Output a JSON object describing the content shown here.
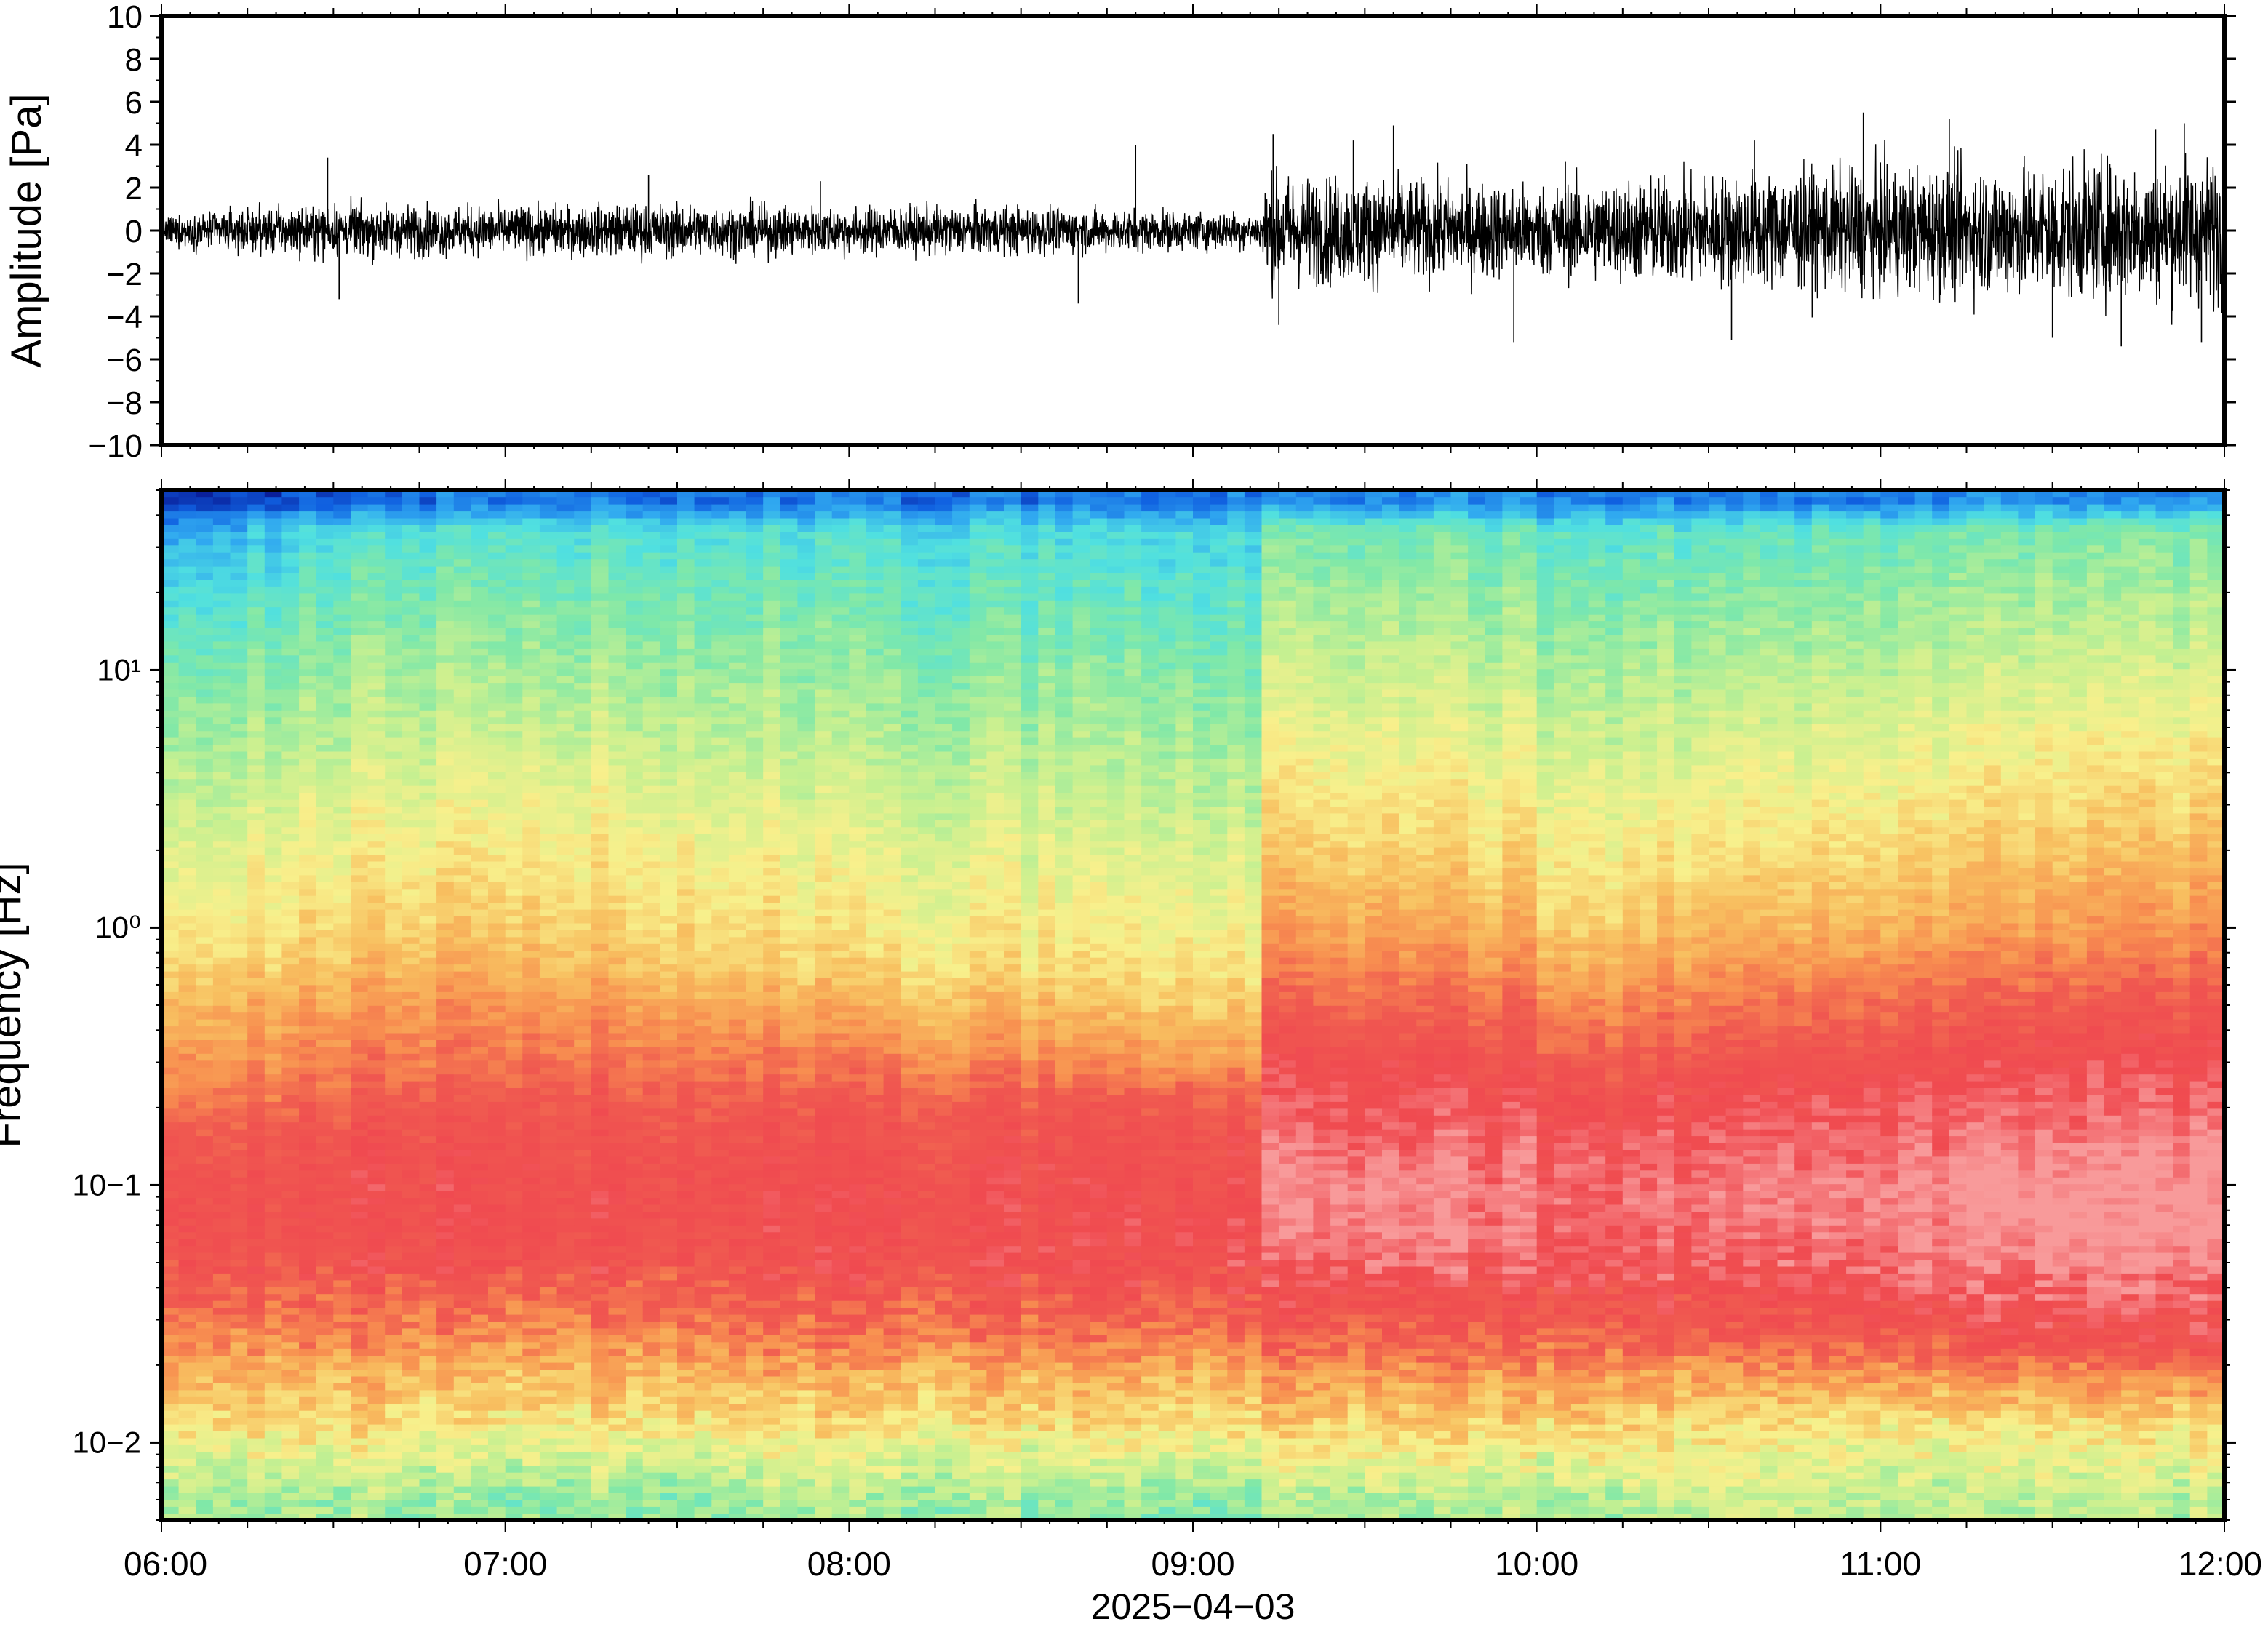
{
  "chart_data": [
    {
      "type": "line",
      "ylabel": "Amplitude [Pa]",
      "ylim": [
        -10,
        10
      ],
      "yticks": [
        10,
        8,
        6,
        4,
        2,
        0,
        -2,
        -4,
        -6,
        -8,
        -10
      ],
      "ytick_labels": [
        "10",
        "8",
        "6",
        "4",
        "2",
        "0",
        "−2",
        "−4",
        "−6",
        "−8",
        "−10"
      ],
      "xlim": [
        "06:00",
        "12:00"
      ],
      "grid": false,
      "line_color": "#000000",
      "envelope": {
        "time": [
          "06:00",
          "06:15",
          "06:30",
          "07:00",
          "07:30",
          "08:00",
          "08:30",
          "09:00",
          "09:12",
          "09:13",
          "09:30",
          "10:00",
          "10:30",
          "11:00",
          "11:30",
          "12:00"
        ],
        "typical_half_range_pa": [
          0.6,
          0.9,
          1.1,
          1.0,
          1.1,
          1.0,
          1.0,
          0.8,
          0.8,
          2.3,
          2.2,
          1.9,
          2.3,
          2.6,
          2.8,
          3.0
        ]
      },
      "spikes": [
        {
          "time": "06:29",
          "value": 3.4
        },
        {
          "time": "06:31",
          "value": -3.2
        },
        {
          "time": "07:25",
          "value": 2.6
        },
        {
          "time": "07:55",
          "value": 2.3
        },
        {
          "time": "08:40",
          "value": -3.4
        },
        {
          "time": "08:50",
          "value": 4.0
        },
        {
          "time": "09:14",
          "value": 4.5
        },
        {
          "time": "09:15",
          "value": -4.4
        },
        {
          "time": "09:28",
          "value": 4.2
        },
        {
          "time": "09:35",
          "value": 4.9
        },
        {
          "time": "09:56",
          "value": -5.2
        },
        {
          "time": "10:05",
          "value": 3.2
        },
        {
          "time": "10:34",
          "value": -5.1
        },
        {
          "time": "10:38",
          "value": 4.2
        },
        {
          "time": "10:57",
          "value": 5.5
        },
        {
          "time": "11:12",
          "value": 5.2
        },
        {
          "time": "11:30",
          "value": -5.0
        },
        {
          "time": "11:42",
          "value": -5.4
        },
        {
          "time": "11:48",
          "value": 4.7
        },
        {
          "time": "11:53",
          "value": 5.0
        },
        {
          "time": "11:56",
          "value": -5.2
        }
      ]
    },
    {
      "type": "heatmap",
      "ylabel": "Frequency [Hz]",
      "yscale": "log",
      "ylim_hz": [
        0.005,
        50
      ],
      "yticks": [
        "10−2",
        "10−1",
        "10⁰",
        "10¹"
      ],
      "xticks": [
        "06:00",
        "07:00",
        "08:00",
        "09:00",
        "10:00",
        "11:00",
        "12:00"
      ],
      "xlabel": "2025−04−03",
      "x": [
        "06:00",
        "06:30",
        "07:00",
        "07:30",
        "08:00",
        "08:30",
        "09:00",
        "09:12",
        "09:13",
        "09:30",
        "10:00",
        "10:05",
        "10:30",
        "11:00",
        "11:30",
        "12:00"
      ],
      "y_hz": [
        0.006,
        0.009,
        0.012,
        0.018,
        0.025,
        0.035,
        0.05,
        0.07,
        0.1,
        0.15,
        0.2,
        0.3,
        0.5,
        0.7,
        1,
        2,
        5,
        10,
        20,
        35,
        45
      ],
      "z_relative_0_to_1": [
        [
          0.4,
          0.42,
          0.38,
          0.4,
          0.42,
          0.4,
          0.38,
          0.38,
          0.42,
          0.42,
          0.42,
          0.4,
          0.48,
          0.46,
          0.44,
          0.44
        ],
        [
          0.5,
          0.52,
          0.48,
          0.5,
          0.52,
          0.5,
          0.5,
          0.5,
          0.54,
          0.54,
          0.52,
          0.52,
          0.55,
          0.52,
          0.52,
          0.52
        ],
        [
          0.58,
          0.58,
          0.56,
          0.58,
          0.58,
          0.58,
          0.58,
          0.58,
          0.6,
          0.6,
          0.6,
          0.6,
          0.6,
          0.58,
          0.58,
          0.58
        ],
        [
          0.66,
          0.66,
          0.64,
          0.66,
          0.66,
          0.66,
          0.66,
          0.66,
          0.7,
          0.7,
          0.7,
          0.68,
          0.7,
          0.72,
          0.72,
          0.74
        ],
        [
          0.74,
          0.74,
          0.72,
          0.74,
          0.76,
          0.76,
          0.76,
          0.76,
          0.8,
          0.8,
          0.8,
          0.78,
          0.82,
          0.84,
          0.86,
          0.88
        ],
        [
          0.8,
          0.8,
          0.78,
          0.8,
          0.82,
          0.82,
          0.84,
          0.84,
          0.86,
          0.86,
          0.86,
          0.84,
          0.88,
          0.9,
          0.92,
          0.92
        ],
        [
          0.84,
          0.86,
          0.86,
          0.86,
          0.88,
          0.88,
          0.88,
          0.88,
          0.92,
          0.94,
          0.92,
          0.9,
          0.94,
          0.96,
          0.98,
          0.98
        ],
        [
          0.86,
          0.88,
          0.88,
          0.88,
          0.88,
          0.88,
          0.9,
          0.9,
          0.96,
          0.98,
          0.96,
          0.92,
          0.96,
          0.98,
          1.0,
          1.0
        ],
        [
          0.86,
          0.88,
          0.88,
          0.88,
          0.88,
          0.88,
          0.88,
          0.88,
          0.98,
          0.98,
          0.96,
          0.92,
          0.97,
          1.0,
          1.0,
          1.0
        ],
        [
          0.82,
          0.86,
          0.86,
          0.86,
          0.86,
          0.86,
          0.86,
          0.86,
          0.94,
          0.94,
          0.94,
          0.9,
          0.94,
          0.96,
          0.97,
          0.98
        ],
        [
          0.76,
          0.82,
          0.84,
          0.84,
          0.84,
          0.84,
          0.84,
          0.82,
          0.92,
          0.92,
          0.9,
          0.86,
          0.92,
          0.94,
          0.94,
          0.94
        ],
        [
          0.7,
          0.76,
          0.78,
          0.78,
          0.76,
          0.74,
          0.72,
          0.7,
          0.88,
          0.88,
          0.86,
          0.8,
          0.86,
          0.88,
          0.9,
          0.9
        ],
        [
          0.64,
          0.7,
          0.72,
          0.7,
          0.66,
          0.64,
          0.62,
          0.6,
          0.8,
          0.8,
          0.78,
          0.7,
          0.78,
          0.8,
          0.82,
          0.84
        ],
        [
          0.58,
          0.64,
          0.66,
          0.64,
          0.6,
          0.58,
          0.57,
          0.56,
          0.74,
          0.74,
          0.72,
          0.64,
          0.72,
          0.74,
          0.76,
          0.78
        ],
        [
          0.54,
          0.6,
          0.62,
          0.6,
          0.56,
          0.55,
          0.54,
          0.53,
          0.68,
          0.68,
          0.66,
          0.58,
          0.66,
          0.68,
          0.7,
          0.72
        ],
        [
          0.48,
          0.54,
          0.56,
          0.55,
          0.51,
          0.5,
          0.49,
          0.48,
          0.6,
          0.6,
          0.58,
          0.52,
          0.58,
          0.6,
          0.62,
          0.64
        ],
        [
          0.4,
          0.46,
          0.48,
          0.47,
          0.44,
          0.43,
          0.42,
          0.4,
          0.52,
          0.52,
          0.5,
          0.45,
          0.5,
          0.52,
          0.54,
          0.56
        ],
        [
          0.34,
          0.4,
          0.42,
          0.41,
          0.39,
          0.38,
          0.37,
          0.35,
          0.46,
          0.46,
          0.44,
          0.39,
          0.44,
          0.46,
          0.47,
          0.48
        ],
        [
          0.26,
          0.34,
          0.36,
          0.35,
          0.33,
          0.32,
          0.31,
          0.3,
          0.4,
          0.4,
          0.38,
          0.33,
          0.38,
          0.4,
          0.41,
          0.42
        ],
        [
          0.16,
          0.27,
          0.3,
          0.29,
          0.28,
          0.27,
          0.26,
          0.25,
          0.34,
          0.34,
          0.32,
          0.28,
          0.32,
          0.34,
          0.35,
          0.36
        ],
        [
          0.04,
          0.1,
          0.12,
          0.12,
          0.12,
          0.12,
          0.12,
          0.12,
          0.14,
          0.14,
          0.14,
          0.12,
          0.14,
          0.14,
          0.15,
          0.15
        ]
      ],
      "colormap": [
        "#08108a",
        "#1060e0",
        "#30a8f0",
        "#50e0e0",
        "#80e8a8",
        "#c8f090",
        "#f8f08c",
        "#f8c060",
        "#f89050",
        "#f05a50",
        "#f04a50",
        "#f89a9a"
      ]
    }
  ]
}
